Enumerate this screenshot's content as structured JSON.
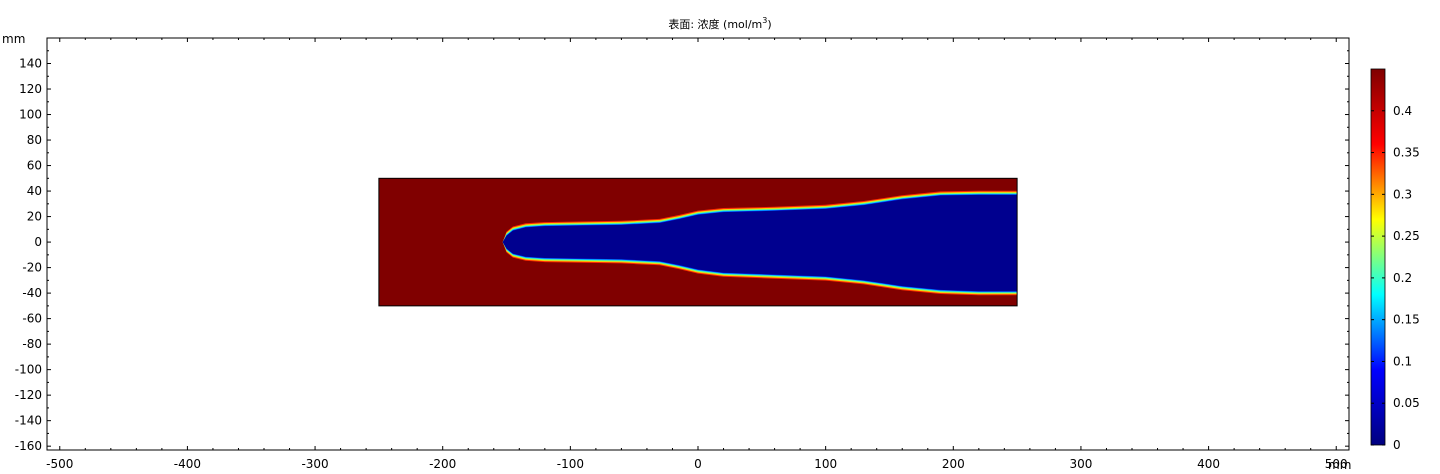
{
  "chart_data": {
    "type": "heatmap",
    "title_main": "表面: 浓度 (mol/m",
    "title_sup": "3",
    "title_close": ")",
    "x_unit": "mm",
    "y_unit": "mm",
    "xlim": [
      -510,
      510
    ],
    "ylim": [
      -163,
      160
    ],
    "x_ticks": [
      -500,
      -400,
      -300,
      -200,
      -100,
      0,
      100,
      200,
      300,
      400,
      500
    ],
    "y_ticks": [
      140,
      120,
      100,
      80,
      60,
      40,
      20,
      0,
      -20,
      -40,
      -60,
      -80,
      -100,
      -120,
      -140,
      -160
    ],
    "domain_x": [
      -250,
      250
    ],
    "domain_y": [
      -50,
      50
    ],
    "colorbar": {
      "min": 0,
      "max": 0.45,
      "ticks": [
        "0.4",
        "0.35",
        "0.3",
        "0.25",
        "0.2",
        "0.15",
        "0.1",
        "0.05",
        "0"
      ],
      "tick_values": [
        0.4,
        0.35,
        0.3,
        0.25,
        0.2,
        0.15,
        0.1,
        0.05,
        0
      ],
      "colormap": [
        "#00007f",
        "#0000ff",
        "#00ffff",
        "#ffff00",
        "#ff0000",
        "#7f0000"
      ]
    },
    "low_concentration_region": {
      "value": 0,
      "tip_x": -153,
      "upper_boundary": [
        [
          -153,
          0
        ],
        [
          -150,
          5
        ],
        [
          -145,
          9
        ],
        [
          -135,
          11.5
        ],
        [
          -120,
          12.5
        ],
        [
          -60,
          13.5
        ],
        [
          -30,
          15
        ],
        [
          -15,
          18
        ],
        [
          0,
          21.5
        ],
        [
          20,
          23.5
        ],
        [
          60,
          24.5
        ],
        [
          100,
          26
        ],
        [
          130,
          29
        ],
        [
          160,
          33.5
        ],
        [
          190,
          36.5
        ],
        [
          220,
          37
        ],
        [
          250,
          37
        ]
      ],
      "lower_boundary": [
        [
          -153,
          0
        ],
        [
          -150,
          -5
        ],
        [
          -145,
          -9
        ],
        [
          -135,
          -11.5
        ],
        [
          -120,
          -12.5
        ],
        [
          -60,
          -13.5
        ],
        [
          -30,
          -15
        ],
        [
          -15,
          -18
        ],
        [
          0,
          -21.5
        ],
        [
          20,
          -24
        ],
        [
          60,
          -25.5
        ],
        [
          100,
          -27
        ],
        [
          130,
          -30
        ],
        [
          160,
          -34.5
        ],
        [
          190,
          -37.5
        ],
        [
          220,
          -38.5
        ],
        [
          250,
          -38.5
        ]
      ]
    },
    "background_value": 0.45,
    "colors": {
      "high": "#800000",
      "low": "#00008f",
      "frame": "#000000",
      "grid_tick": "#000000"
    }
  }
}
